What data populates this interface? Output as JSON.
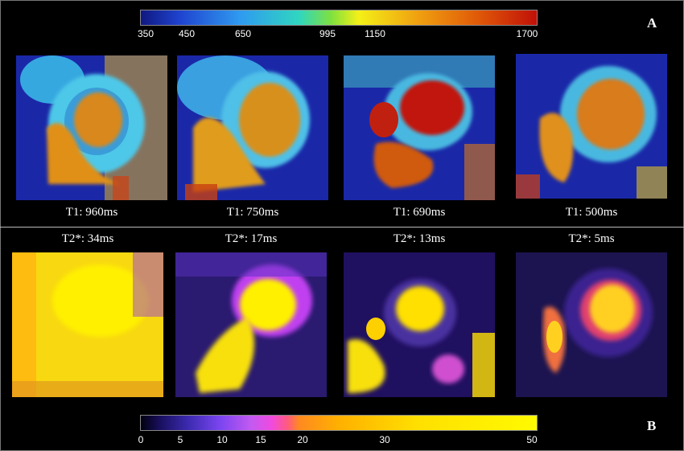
{
  "panel_a": {
    "letter": "A",
    "colorbar": {
      "ticks": [
        "350",
        "450",
        "650",
        "995",
        "1150",
        "1700"
      ],
      "colors": [
        "#101880",
        "#1f44d0",
        "#2f9af0",
        "#30d6c0",
        "#7ee040",
        "#f4f018",
        "#f0a010",
        "#e05a08",
        "#c01008"
      ]
    },
    "maps": [
      {
        "caption": "T1: 960ms"
      },
      {
        "caption": "T1: 750ms"
      },
      {
        "caption": "T1: 690ms"
      },
      {
        "caption": "T1: 500ms"
      }
    ]
  },
  "panel_b": {
    "letter": "B",
    "colorbar": {
      "ticks": [
        "0",
        "5",
        "10",
        "15",
        "20",
        "30",
        "50"
      ],
      "colors": [
        "#000010",
        "#1a1060",
        "#3c2bb0",
        "#7a45f0",
        "#c45af0",
        "#f04ae0",
        "#ff5a80",
        "#ff8a20",
        "#ffb000",
        "#ffe000",
        "#fffa00"
      ]
    },
    "maps": [
      {
        "caption": "T2*: 34ms"
      },
      {
        "caption": "T2*: 17ms"
      },
      {
        "caption": "T2*: 13ms"
      },
      {
        "caption": "T2*: 5ms"
      }
    ]
  }
}
